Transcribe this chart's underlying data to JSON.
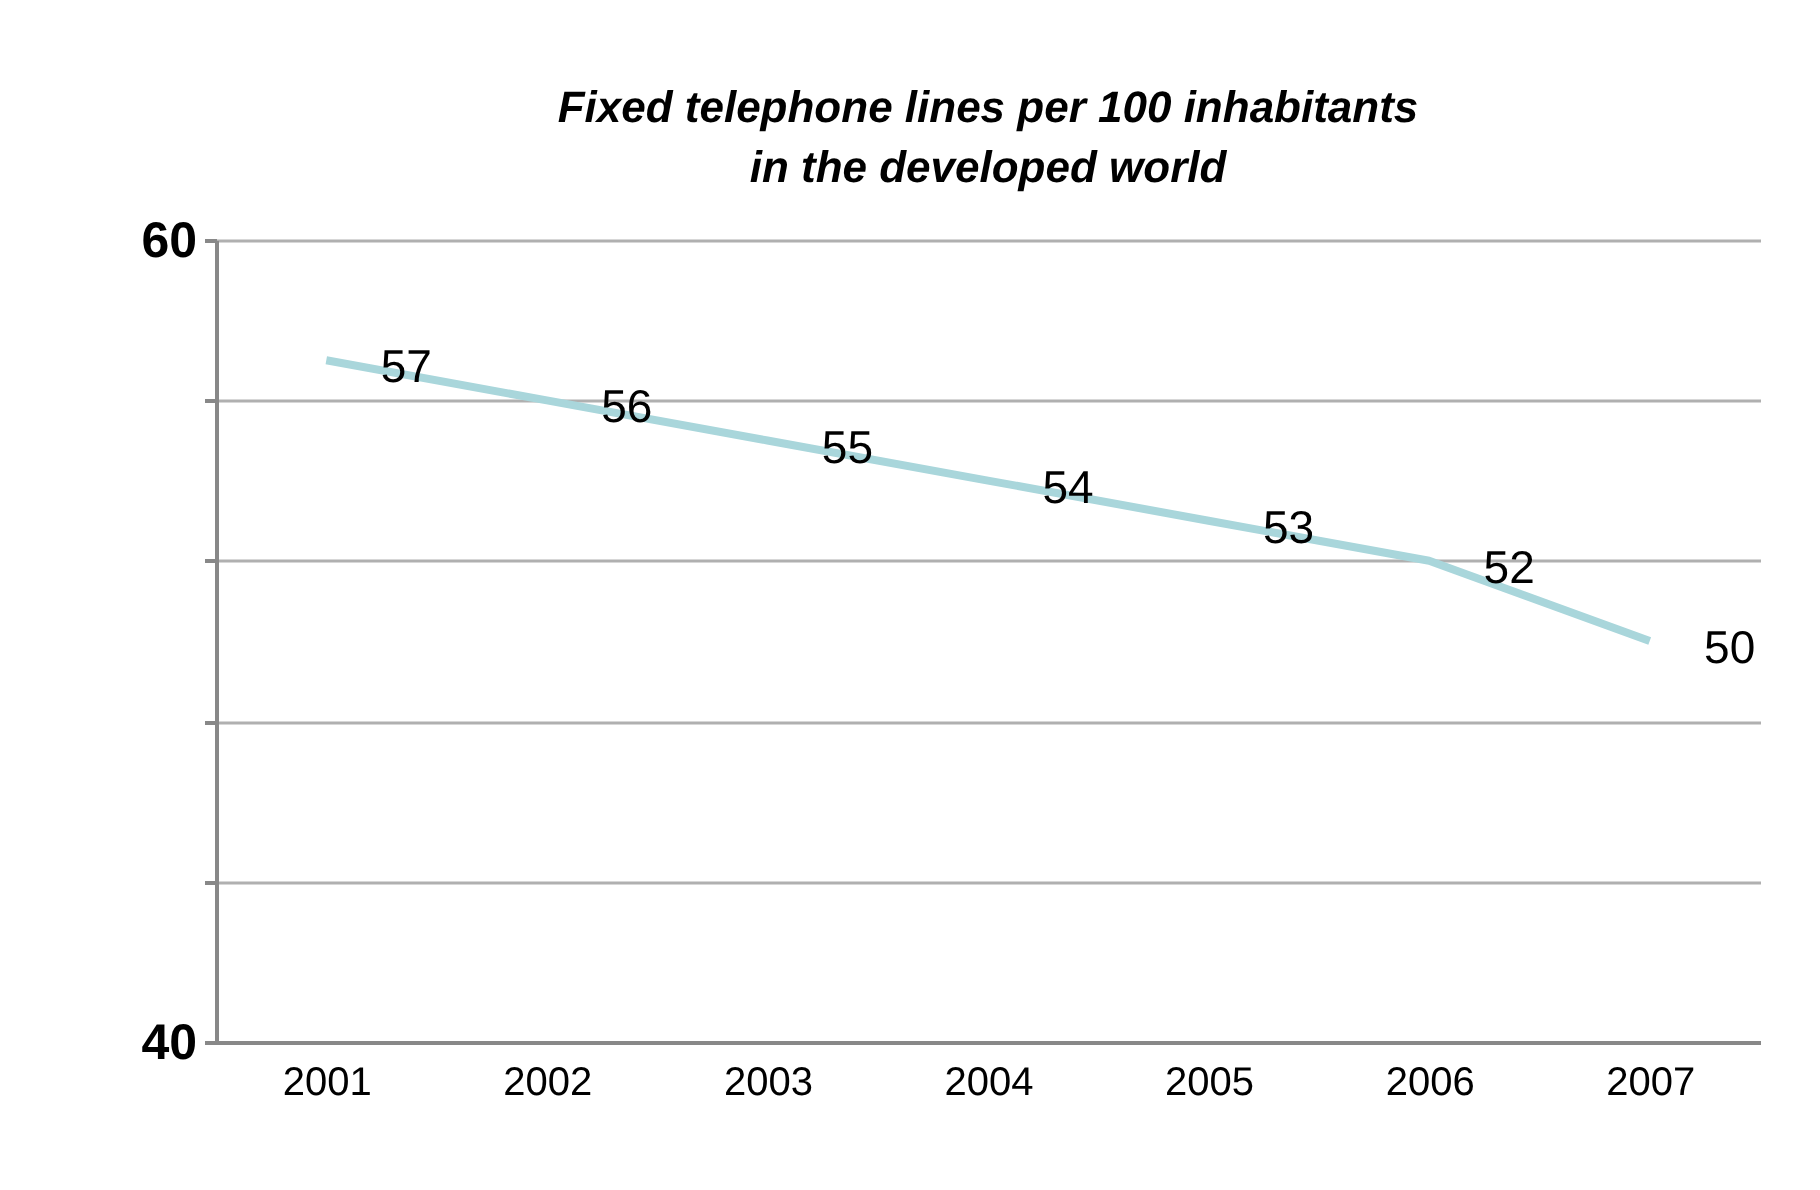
{
  "chart_data": {
    "type": "line",
    "title": "Fixed telephone lines per 100 inhabitants in the developed world",
    "categories": [
      "2001",
      "2002",
      "2003",
      "2004",
      "2005",
      "2006",
      "2007"
    ],
    "values": [
      57,
      56,
      55,
      54,
      53,
      52,
      50
    ],
    "color": "#a9d6db",
    "ylim": [
      40,
      60
    ],
    "yticks": [
      40,
      {
        "value": 44,
        "label": null
      },
      {
        "value": 48,
        "label": null
      },
      {
        "value": 52,
        "label": null
      },
      {
        "value": 56,
        "label": null
      },
      60
    ],
    "grid": "y",
    "data_labels": true,
    "marker": "none",
    "line_style": "solid"
  }
}
